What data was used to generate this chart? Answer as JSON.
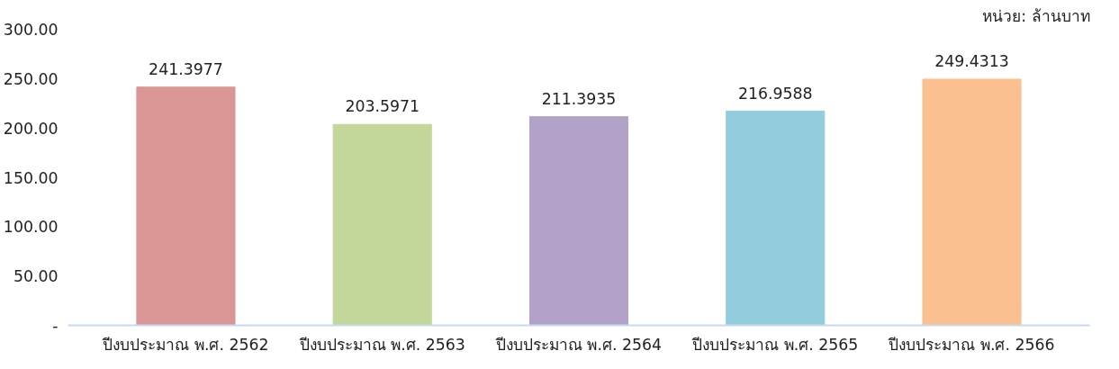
{
  "chart_data": {
    "type": "bar",
    "categories": [
      "ปีงบประมาณ พ.ศ. 2562",
      "ปีงบประมาณ พ.ศ. 2563",
      "ปีงบประมาณ พ.ศ. 2564",
      "ปีงบประมาณ พ.ศ. 2565",
      "ปีงบประมาณ พ.ศ. 2566"
    ],
    "values": [
      241.3977,
      203.5971,
      211.3935,
      216.9588,
      249.4313
    ],
    "colors": [
      "#d99694",
      "#c4d79b",
      "#b3a2c7",
      "#93cddd",
      "#fac090"
    ],
    "ylim": [
      0,
      300
    ],
    "yticks": [
      {
        "value": 0,
        "label": "-"
      },
      {
        "value": 50,
        "label": "50.00"
      },
      {
        "value": 100,
        "label": "100.00"
      },
      {
        "value": 150,
        "label": "150.00"
      },
      {
        "value": 200,
        "label": "200.00"
      },
      {
        "value": 250,
        "label": "250.00"
      },
      {
        "value": 300,
        "label": "300.00"
      }
    ],
    "data_labels": true,
    "grid": false,
    "annotations": [
      "หน่วย: ล้านบาท"
    ]
  }
}
